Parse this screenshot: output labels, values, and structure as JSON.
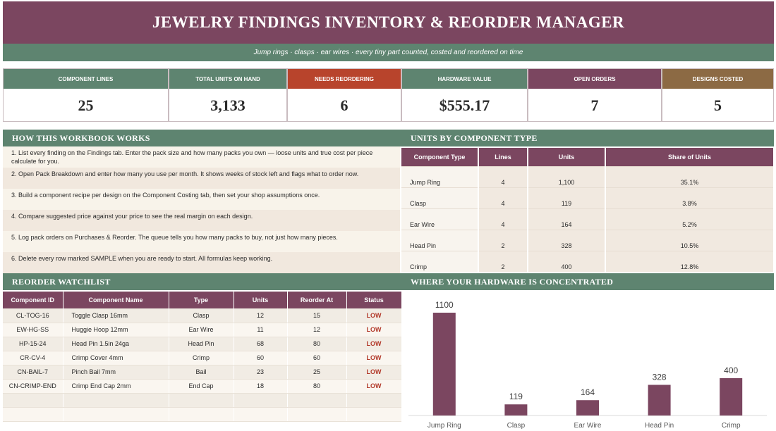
{
  "title": "JEWELRY FINDINGS INVENTORY & REORDER MANAGER",
  "subtitle": "Jump rings · clasps · ear wires · every tiny part counted, costed and reordered on time",
  "kpis": [
    {
      "label": "COMPONENT LINES",
      "value": "25",
      "color": "#5e8470"
    },
    {
      "label": "TOTAL UNITS ON HAND",
      "value": "3,133",
      "color": "#5e8470"
    },
    {
      "label": "NEEDS REORDERING",
      "value": "6",
      "color": "#b8442c"
    },
    {
      "label": "HARDWARE VALUE",
      "value": "$555.17",
      "color": "#5e8470"
    },
    {
      "label": "OPEN ORDERS",
      "value": "7",
      "color": "#7b4660"
    },
    {
      "label": "DESIGNS COSTED",
      "value": "5",
      "color": "#8c6a44"
    }
  ],
  "how": {
    "heading": "HOW THIS WORKBOOK WORKS",
    "steps": [
      "1.  List every finding on the Findings tab. Enter the pack size and how many packs you own — loose units and true cost per piece calculate for you.",
      "2.  Open Pack Breakdown and enter how many you use per month. It shows weeks of stock left and flags what to order now.",
      "3.  Build a component recipe per design on the Component Costing tab, then set your shop assumptions once.",
      "4.  Compare suggested price against your price to see the real margin on each design.",
      "5.  Log pack orders on Purchases & Reorder. The queue tells you how many packs to buy, not just how many pieces.",
      "6.  Delete every row marked SAMPLE when you are ready to start. All formulas keep working."
    ]
  },
  "units": {
    "heading": "UNITS BY COMPONENT TYPE",
    "columns": [
      "Component Type",
      "Lines",
      "Units",
      "Share of Units"
    ],
    "rows": [
      [
        "Jump Ring",
        "4",
        "1,100",
        "35.1%"
      ],
      [
        "Clasp",
        "4",
        "119",
        "3.8%"
      ],
      [
        "Ear Wire",
        "4",
        "164",
        "5.2%"
      ],
      [
        "Head Pin",
        "2",
        "328",
        "10.5%"
      ],
      [
        "Crimp",
        "2",
        "400",
        "12.8%"
      ]
    ]
  },
  "watch": {
    "heading": "REORDER WATCHLIST",
    "columns": [
      "Component ID",
      "Component Name",
      "Type",
      "Units",
      "Reorder At",
      "Status"
    ],
    "rows": [
      [
        "CL-TOG-16",
        "Toggle Clasp 16mm",
        "Clasp",
        "12",
        "15",
        "LOW"
      ],
      [
        "EW-HG-SS",
        "Huggie Hoop 12mm",
        "Ear Wire",
        "11",
        "12",
        "LOW"
      ],
      [
        "HP-15-24",
        "Head Pin 1.5in 24ga",
        "Head Pin",
        "68",
        "80",
        "LOW"
      ],
      [
        "CR-CV-4",
        "Crimp Cover 4mm",
        "Crimp",
        "60",
        "60",
        "LOW"
      ],
      [
        "CN-BAIL-7",
        "Pinch Bail 7mm",
        "Bail",
        "23",
        "25",
        "LOW"
      ],
      [
        "CN-CRIMP-END",
        "Crimp End Cap 2mm",
        "End Cap",
        "18",
        "80",
        "LOW"
      ],
      [
        "",
        "",
        "",
        "",
        "",
        ""
      ],
      [
        "",
        "",
        "",
        "",
        "",
        ""
      ]
    ]
  },
  "concentration": {
    "heading": "WHERE YOUR HARDWARE IS CONCENTRATED"
  },
  "chart_data": {
    "type": "bar",
    "categories": [
      "Jump Ring",
      "Clasp",
      "Ear Wire",
      "Head Pin",
      "Crimp"
    ],
    "values": [
      1100,
      119,
      164,
      328,
      400
    ],
    "data_labels": [
      "1100",
      "119",
      "164",
      "328",
      "400"
    ],
    "ylim": [
      0,
      1100
    ],
    "bar_color": "#7b4660",
    "grid": false,
    "legend": "none"
  }
}
